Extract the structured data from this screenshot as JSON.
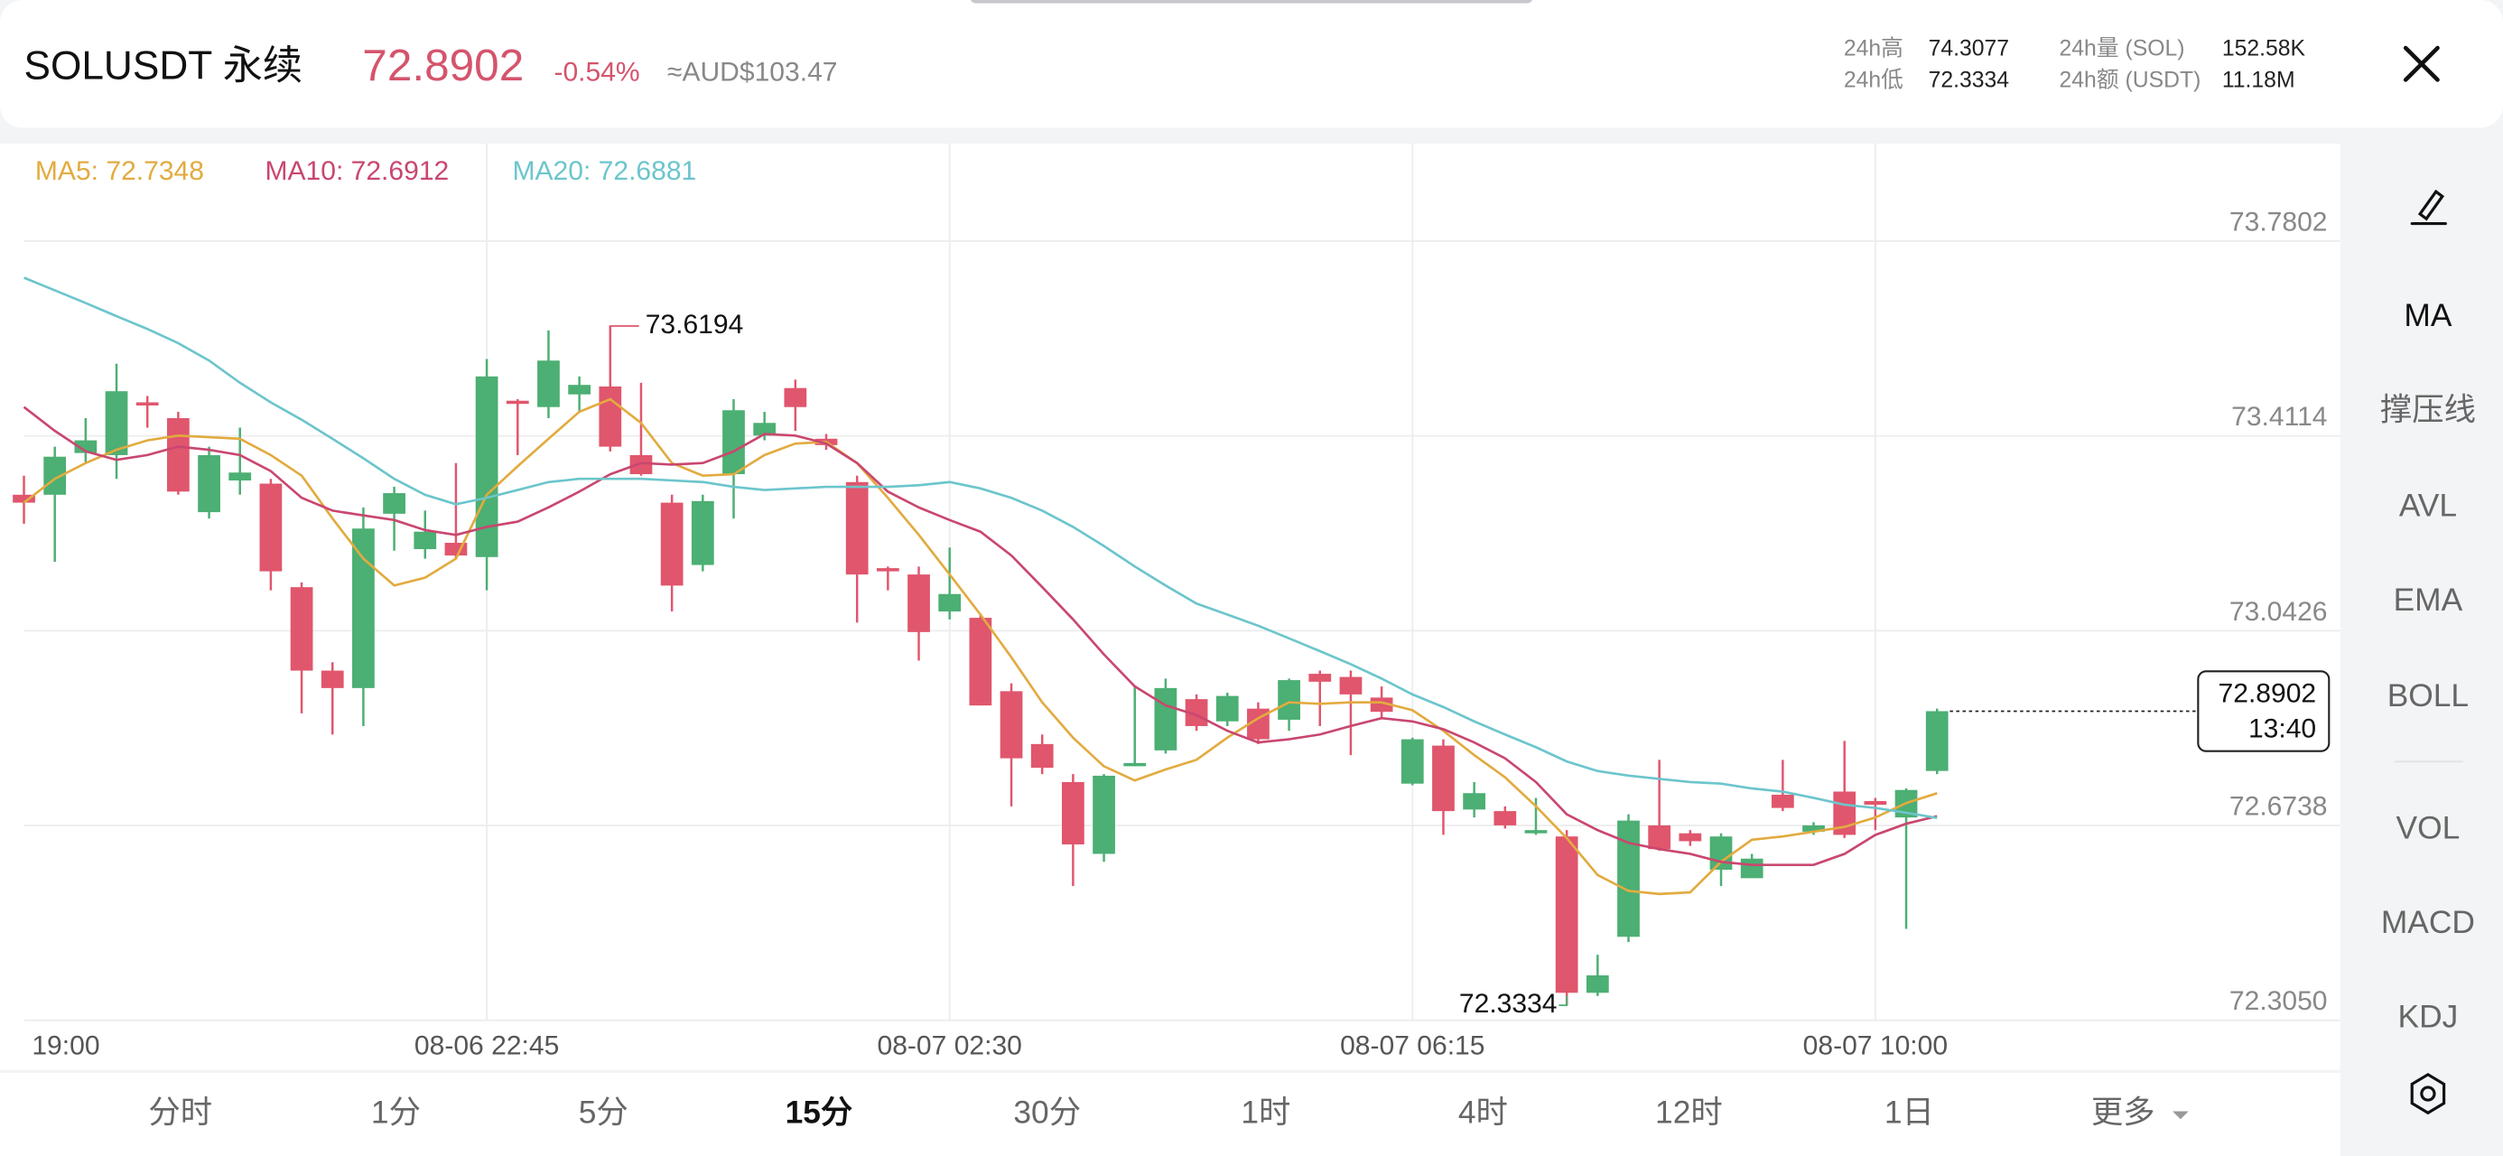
{
  "header": {
    "symbol": "SOLUSDT 永续",
    "price": "72.8902",
    "change": "-0.54%",
    "fiat": "≈AUD$103.47",
    "stats": [
      {
        "label": "24h高",
        "value": "74.3077"
      },
      {
        "label": "24h低",
        "value": "72.3334"
      },
      {
        "label": "24h量 (SOL)",
        "value": "152.58K"
      },
      {
        "label": "24h额 (USDT)",
        "value": "11.18M"
      }
    ]
  },
  "chart_data": {
    "type": "candlestick",
    "categories": [
      "19:00",
      null,
      null,
      null,
      null,
      null,
      null,
      null,
      null,
      null,
      null,
      null,
      null,
      null,
      null,
      "08-06 22:45",
      null,
      null,
      null,
      null,
      null,
      null,
      null,
      null,
      null,
      null,
      null,
      null,
      null,
      null,
      "08-07 02:30",
      null,
      null,
      null,
      null,
      null,
      null,
      null,
      null,
      null,
      null,
      null,
      null,
      null,
      null,
      "08-07 06:15",
      null,
      null,
      null,
      null,
      null,
      null,
      null,
      null,
      null,
      null,
      null,
      null,
      null,
      null,
      "08-07 10:00",
      null,
      null
    ],
    "candles": {
      "up_color": "#4caf73",
      "down_color": "#e0566d",
      "open": [
        73.3,
        73.3,
        73.379,
        73.375,
        73.475,
        73.445,
        73.267,
        73.327,
        73.321,
        73.125,
        72.967,
        72.934,
        73.264,
        73.197,
        73.209,
        73.182,
        73.478,
        73.466,
        73.49,
        73.505,
        73.375,
        73.285,
        73.167,
        73.339,
        73.412,
        73.502,
        73.406,
        73.324,
        73.161,
        73.149,
        73.079,
        73.067,
        72.928,
        72.828,
        72.756,
        72.62,
        72.786,
        72.816,
        72.913,
        72.871,
        72.895,
        72.874,
        72.961,
        72.955,
        72.916,
        72.753,
        72.825,
        72.704,
        72.701,
        72.659,
        72.653,
        72.357,
        72.463,
        72.674,
        72.659,
        72.59,
        72.574,
        72.732,
        72.662,
        72.738,
        72.72,
        72.689,
        72.777
      ],
      "high": [
        73.336,
        73.391,
        73.445,
        73.548,
        73.487,
        73.457,
        73.391,
        73.427,
        73.33,
        73.134,
        72.983,
        73.276,
        73.315,
        73.27,
        73.36,
        73.557,
        73.481,
        73.611,
        73.524,
        73.6194,
        73.512,
        73.3,
        73.3,
        73.481,
        73.457,
        73.518,
        73.415,
        73.336,
        73.164,
        73.164,
        73.2,
        73.073,
        72.943,
        72.846,
        72.771,
        72.771,
        72.937,
        72.952,
        72.922,
        72.925,
        72.907,
        72.952,
        72.967,
        72.967,
        72.937,
        72.84,
        72.837,
        72.756,
        72.71,
        72.726,
        72.665,
        72.429,
        72.695,
        72.798,
        72.665,
        72.659,
        72.62,
        72.798,
        72.68,
        72.834,
        72.726,
        72.744,
        72.895
      ],
      "low": [
        73.245,
        73.173,
        73.36,
        73.33,
        73.427,
        73.3,
        73.255,
        73.3,
        73.119,
        72.886,
        72.846,
        72.862,
        73.194,
        73.179,
        73.179,
        73.119,
        73.375,
        73.445,
        73.457,
        73.382,
        73.336,
        73.079,
        73.155,
        73.255,
        73.403,
        73.421,
        73.385,
        73.058,
        73.119,
        72.986,
        73.064,
        72.901,
        72.71,
        72.771,
        72.559,
        72.605,
        72.786,
        72.81,
        72.853,
        72.862,
        72.828,
        72.853,
        72.862,
        72.807,
        72.877,
        72.75,
        72.656,
        72.689,
        72.668,
        72.656,
        72.3334,
        72.351,
        72.453,
        72.626,
        72.635,
        72.559,
        72.574,
        72.701,
        72.656,
        72.65,
        72.665,
        72.478,
        72.771
      ],
      "close": [
        73.285,
        73.372,
        73.403,
        73.496,
        73.469,
        73.306,
        73.375,
        73.342,
        73.155,
        72.967,
        72.934,
        73.236,
        73.303,
        73.23,
        73.185,
        73.524,
        73.472,
        73.554,
        73.508,
        73.391,
        73.339,
        73.128,
        73.288,
        73.46,
        73.436,
        73.466,
        73.394,
        73.149,
        73.155,
        73.04,
        73.112,
        72.901,
        72.801,
        72.783,
        72.638,
        72.768,
        72.792,
        72.934,
        72.862,
        72.919,
        72.837,
        72.949,
        72.946,
        72.922,
        72.889,
        72.837,
        72.701,
        72.735,
        72.674,
        72.665,
        72.357,
        72.39,
        72.683,
        72.629,
        72.644,
        72.653,
        72.611,
        72.707,
        72.674,
        72.656,
        72.713,
        72.741,
        72.8902
      ]
    },
    "series": [
      {
        "name": "MA5",
        "legend_label": "MA5: 72.7348",
        "color": "#e2ab3f",
        "values": [
          73.285,
          73.33,
          73.36,
          73.385,
          73.403,
          73.412,
          73.409,
          73.406,
          73.375,
          73.336,
          73.255,
          73.179,
          73.128,
          73.143,
          73.179,
          73.3,
          73.354,
          73.406,
          73.457,
          73.481,
          73.436,
          73.36,
          73.336,
          73.339,
          73.375,
          73.397,
          73.4,
          73.36,
          73.294,
          73.224,
          73.149,
          73.073,
          72.992,
          72.907,
          72.84,
          72.786,
          72.759,
          72.78,
          72.798,
          72.84,
          72.877,
          72.907,
          72.904,
          72.907,
          72.907,
          72.892,
          72.853,
          72.807,
          72.765,
          72.71,
          72.65,
          72.58,
          72.55,
          72.544,
          72.547,
          72.605,
          72.647,
          72.653,
          72.662,
          72.671,
          72.689,
          72.716,
          72.7348
        ]
      },
      {
        "name": "MA10",
        "legend_label": "MA10: 72.6912",
        "color": "#c9476f",
        "values": [
          73.466,
          73.421,
          73.382,
          73.366,
          73.375,
          73.391,
          73.385,
          73.375,
          73.345,
          73.294,
          73.27,
          73.261,
          73.252,
          73.233,
          73.224,
          73.239,
          73.249,
          73.276,
          73.306,
          73.339,
          73.36,
          73.357,
          73.36,
          73.382,
          73.415,
          73.412,
          73.397,
          73.36,
          73.306,
          73.276,
          73.252,
          73.23,
          73.185,
          73.125,
          73.064,
          72.998,
          72.937,
          72.901,
          72.883,
          72.853,
          72.831,
          72.837,
          72.846,
          72.862,
          72.877,
          72.871,
          72.856,
          72.831,
          72.801,
          72.756,
          72.695,
          72.665,
          72.641,
          72.629,
          72.62,
          72.605,
          72.599,
          72.599,
          72.599,
          72.62,
          72.656,
          72.677,
          72.6912
        ]
      },
      {
        "name": "MA20",
        "legend_label": "MA20: 72.6881",
        "color": "#6cc5cc",
        "values": [
          73.711,
          73.687,
          73.663,
          73.638,
          73.614,
          73.587,
          73.554,
          73.512,
          73.475,
          73.442,
          73.406,
          73.369,
          73.33,
          73.3,
          73.282,
          73.294,
          73.309,
          73.324,
          73.33,
          73.33,
          73.33,
          73.327,
          73.324,
          73.315,
          73.309,
          73.312,
          73.315,
          73.315,
          73.315,
          73.318,
          73.324,
          73.312,
          73.294,
          73.27,
          73.239,
          73.203,
          73.164,
          73.128,
          73.094,
          73.073,
          73.052,
          73.028,
          73.004,
          72.979,
          72.952,
          72.922,
          72.898,
          72.871,
          72.846,
          72.822,
          72.795,
          72.777,
          72.768,
          72.762,
          72.756,
          72.753,
          72.744,
          72.738,
          72.726,
          72.713,
          72.707,
          72.698,
          72.6881
        ]
      }
    ],
    "ylim": [
      72.305,
      73.9646
    ],
    "yticks": [
      73.7802,
      73.4114,
      73.0426,
      72.6738,
      {
        "value": 72.305,
        "label": "72.3050"
      }
    ],
    "grid": true,
    "max_label": 73.6194,
    "min_label": 72.3334,
    "last_price": 72.8902,
    "countdown": "13:40"
  },
  "tabs": [
    {
      "label": "分时"
    },
    {
      "label": "1分"
    },
    {
      "label": "5分"
    },
    {
      "label": "15分",
      "active": true
    },
    {
      "label": "30分"
    },
    {
      "label": "1时"
    },
    {
      "label": "4时"
    },
    {
      "label": "12时"
    },
    {
      "label": "1日"
    },
    {
      "label": "更多"
    }
  ],
  "sidebar": [
    "MA",
    "撑压线",
    "AVL",
    "EMA",
    "BOLL",
    "VOL",
    "MACD",
    "KDJ"
  ]
}
